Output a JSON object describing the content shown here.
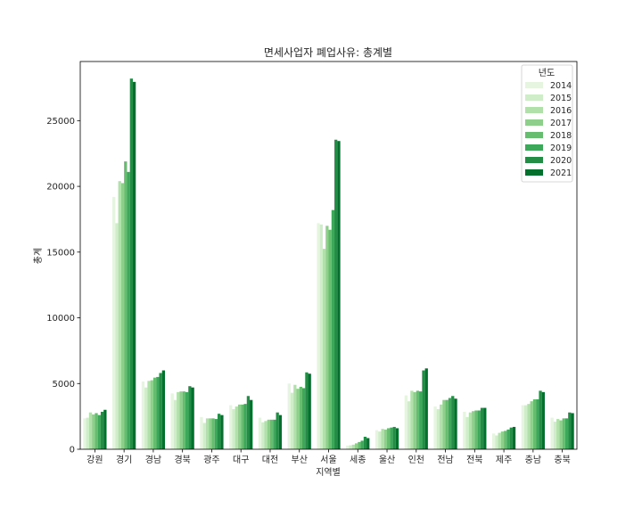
{
  "chart_data": {
    "type": "bar",
    "title": "면세사업자 폐업사유: 총계별",
    "xlabel": "지역별",
    "ylabel": "총계",
    "ylim": [
      0,
      29500
    ],
    "yticks": [
      0,
      5000,
      10000,
      15000,
      20000,
      25000
    ],
    "ytick_labels": [
      "0",
      "5000",
      "10000",
      "15000",
      "20000",
      "25000"
    ],
    "grid": false,
    "legend_title": "년도",
    "legend_position": "top-right",
    "categories": [
      "강원",
      "경기",
      "경남",
      "경북",
      "광주",
      "대구",
      "대전",
      "부산",
      "서울",
      "세종",
      "울산",
      "인천",
      "전남",
      "전북",
      "제주",
      "충남",
      "충북"
    ],
    "series": [
      {
        "name": "2014",
        "color": "#e5f5e0",
        "values": [
          2350,
          19200,
          5150,
          4250,
          2450,
          3350,
          2400,
          5000,
          17200,
          280,
          1450,
          4100,
          3250,
          2850,
          1200,
          3350,
          2400
        ]
      },
      {
        "name": "2015",
        "color": "#d0edca",
        "values": [
          2400,
          17200,
          4700,
          3750,
          2000,
          3050,
          2050,
          4300,
          17100,
          300,
          1350,
          3650,
          3050,
          2450,
          1050,
          3350,
          2100
        ]
      },
      {
        "name": "2016",
        "color": "#b2e0ab",
        "values": [
          2800,
          20400,
          5200,
          4350,
          2350,
          3250,
          2150,
          4900,
          15250,
          350,
          1550,
          4450,
          3400,
          2800,
          1250,
          3450,
          2300
        ]
      },
      {
        "name": "2017",
        "color": "#8ed08b",
        "values": [
          2650,
          20250,
          5250,
          4400,
          2350,
          3400,
          2250,
          4600,
          17000,
          450,
          1500,
          4350,
          3750,
          2900,
          1350,
          3650,
          2200
        ]
      },
      {
        "name": "2018",
        "color": "#66bd6f",
        "values": [
          2750,
          21900,
          5450,
          4400,
          2350,
          3400,
          2250,
          4750,
          16700,
          550,
          1600,
          4450,
          3750,
          2950,
          1400,
          3800,
          2350
        ]
      },
      {
        "name": "2019",
        "color": "#3da75a",
        "values": [
          2600,
          21100,
          5500,
          4350,
          2300,
          3450,
          2250,
          4650,
          18200,
          650,
          1650,
          4400,
          3900,
          2950,
          1500,
          3800,
          2350
        ]
      },
      {
        "name": "2020",
        "color": "#238c45",
        "values": [
          2850,
          28200,
          5800,
          4800,
          2700,
          4050,
          2800,
          5850,
          23550,
          950,
          1700,
          6000,
          4050,
          3150,
          1650,
          4450,
          2800
        ]
      },
      {
        "name": "2021",
        "color": "#03702e",
        "values": [
          3000,
          27950,
          6000,
          4700,
          2600,
          3750,
          2600,
          5750,
          23450,
          850,
          1600,
          6150,
          3850,
          3150,
          1700,
          4350,
          2750
        ]
      }
    ]
  }
}
